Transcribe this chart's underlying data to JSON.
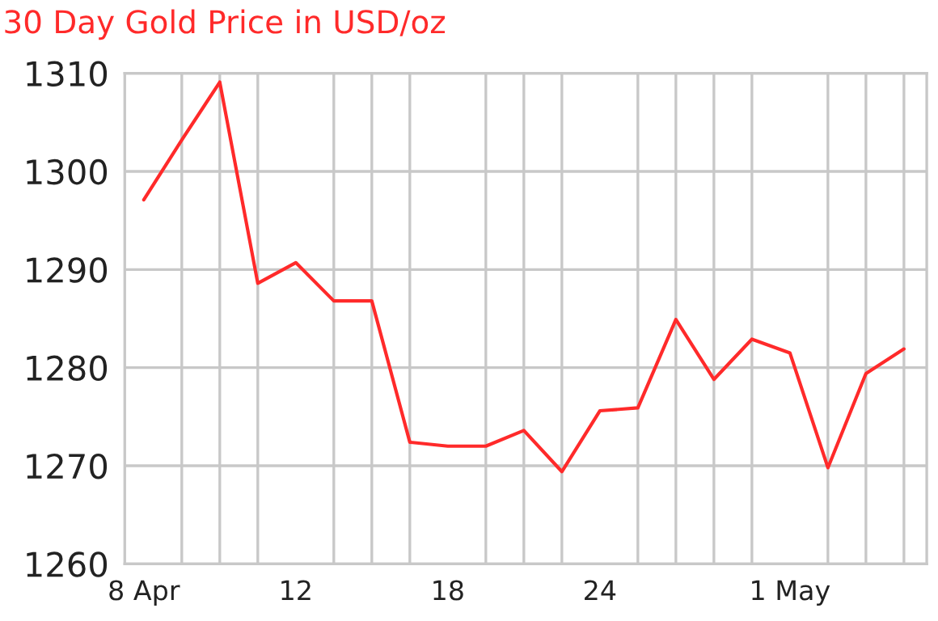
{
  "chart_data": {
    "type": "line",
    "title": "30 Day Gold Price in USD/oz",
    "categories": [
      "8 Apr",
      null,
      null,
      null,
      "12",
      null,
      null,
      null,
      "18",
      null,
      null,
      null,
      "24",
      null,
      null,
      null,
      null,
      "1 May",
      null,
      null,
      null
    ],
    "series": [
      {
        "color": "#ff2a2a",
        "values": [
          1297.1,
          1303.2,
          1309.1,
          1288.6,
          1290.7,
          1286.8,
          1286.8,
          1272.4,
          1272.0,
          1272.0,
          1273.6,
          1269.4,
          1275.6,
          1275.9,
          1284.9,
          1278.8,
          1282.9,
          1281.5,
          1269.8,
          1279.4,
          1281.9
        ]
      }
    ],
    "ylim": [
      1260,
      1310
    ],
    "yticks": [
      1260,
      1270,
      1280,
      1290,
      1300,
      1310
    ],
    "grid": true,
    "marker": "none",
    "line_style": "solid"
  }
}
